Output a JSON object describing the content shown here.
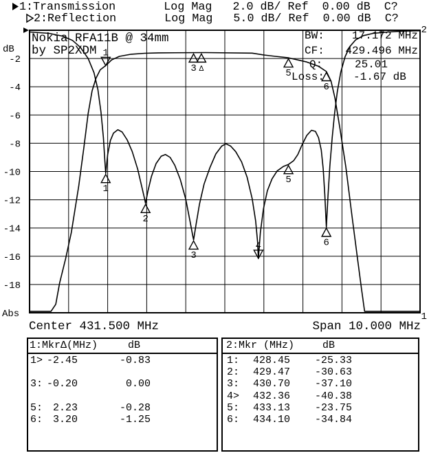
{
  "header": {
    "line1_text": "1:Transmission       Log Mag   2.0 dB/ Ref  0.00 dB  C?",
    "line2_text": "2:Reflection       Log Mag   5.0 dB/ Ref  0.00 dB  C?"
  },
  "annotation": {
    "line1": "Nokia RFA11B @ 34mm",
    "line2": "by SP2XDM"
  },
  "measurements": {
    "bw_label": "BW:",
    "bw_value": "17.172 MHz",
    "cf_label": "CF:",
    "cf_value": "429.496 MHz",
    "q_label": "Q:",
    "q_value": "25.01",
    "loss_label": "Loss:",
    "loss_value": "-1.67 dB"
  },
  "axis": {
    "y_title": "dB",
    "y_bottom": "Abs",
    "center_label": "Center 431.500 MHz",
    "span_label": "Span 10.000 MHz",
    "trace1_end": "1",
    "trace2_end": "2"
  },
  "chart_data": {
    "type": "line",
    "title": "Nokia RFA11B @ 34mm by SP2XDM",
    "x_axis": {
      "min_mhz": 426.5,
      "max_mhz": 436.5,
      "center_mhz": 431.5,
      "span_mhz": 10.0,
      "divisions": 10
    },
    "y_axis": {
      "ref_db": 0.0,
      "divisions": 10,
      "ticks": [
        "-2",
        "-4",
        "-6",
        "-8",
        "-10",
        "-12",
        "-14",
        "-16",
        "-18"
      ],
      "trace1_db_per_div": 2.0,
      "trace2_db_per_div": 5.0
    },
    "grid": true,
    "series": [
      {
        "name": "Transmission",
        "trace": 1,
        "db_per_div": 2,
        "points": [
          [
            426.5,
            -19.9
          ],
          [
            427.05,
            -19.9
          ],
          [
            427.17,
            -19.4
          ],
          [
            427.27,
            -17.9
          ],
          [
            427.42,
            -16.2
          ],
          [
            427.57,
            -14.3
          ],
          [
            427.76,
            -11.0
          ],
          [
            427.89,
            -8.3
          ],
          [
            428.0,
            -5.9
          ],
          [
            428.1,
            -4.3
          ],
          [
            428.2,
            -3.4
          ],
          [
            428.31,
            -2.8
          ],
          [
            428.45,
            -2.5
          ],
          [
            428.6,
            -2.1
          ],
          [
            428.8,
            -1.85
          ],
          [
            429.1,
            -1.7
          ],
          [
            429.45,
            -1.63
          ],
          [
            429.8,
            -1.6
          ],
          [
            431.0,
            -1.58
          ],
          [
            432.2,
            -1.62
          ],
          [
            432.5,
            -1.75
          ],
          [
            432.8,
            -1.85
          ],
          [
            433.13,
            -1.95
          ],
          [
            433.6,
            -2.25
          ],
          [
            433.9,
            -2.55
          ],
          [
            434.1,
            -2.92
          ],
          [
            434.22,
            -3.6
          ],
          [
            434.32,
            -4.8
          ],
          [
            434.45,
            -7.0
          ],
          [
            434.6,
            -9.7
          ],
          [
            434.75,
            -13.0
          ],
          [
            434.9,
            -16.2
          ],
          [
            435.0,
            -18.3
          ],
          [
            435.08,
            -19.9
          ],
          [
            436.5,
            -19.9
          ]
        ]
      },
      {
        "name": "Reflection",
        "trace": 2,
        "db_per_div": 5,
        "points": [
          [
            426.5,
            -0.3
          ],
          [
            427.0,
            -0.55
          ],
          [
            427.35,
            -1.05
          ],
          [
            427.6,
            -1.8
          ],
          [
            427.8,
            -3.0
          ],
          [
            428.0,
            -5.0
          ],
          [
            428.15,
            -7.5
          ],
          [
            428.25,
            -10.5
          ],
          [
            428.33,
            -14.5
          ],
          [
            428.39,
            -19.0
          ],
          [
            428.43,
            -23.3
          ],
          [
            428.45,
            -25.33
          ],
          [
            428.5,
            -22.0
          ],
          [
            428.57,
            -19.5
          ],
          [
            428.65,
            -18.2
          ],
          [
            428.76,
            -17.6
          ],
          [
            428.87,
            -18.0
          ],
          [
            429.0,
            -19.4
          ],
          [
            429.13,
            -21.5
          ],
          [
            429.27,
            -24.6
          ],
          [
            429.39,
            -28.2
          ],
          [
            429.45,
            -30.0
          ],
          [
            429.47,
            -30.63
          ],
          [
            429.53,
            -28.5
          ],
          [
            429.62,
            -25.9
          ],
          [
            429.74,
            -23.6
          ],
          [
            429.87,
            -22.3
          ],
          [
            429.98,
            -22.0
          ],
          [
            430.1,
            -22.5
          ],
          [
            430.22,
            -23.9
          ],
          [
            430.36,
            -26.4
          ],
          [
            430.5,
            -29.9
          ],
          [
            430.61,
            -33.8
          ],
          [
            430.68,
            -36.4
          ],
          [
            430.7,
            -37.1
          ],
          [
            430.76,
            -34.5
          ],
          [
            430.85,
            -30.8
          ],
          [
            430.97,
            -27.2
          ],
          [
            431.12,
            -24.3
          ],
          [
            431.27,
            -21.9
          ],
          [
            431.42,
            -20.5
          ],
          [
            431.53,
            -20.1
          ],
          [
            431.65,
            -20.5
          ],
          [
            431.78,
            -21.5
          ],
          [
            431.93,
            -23.3
          ],
          [
            432.07,
            -26.0
          ],
          [
            432.2,
            -29.8
          ],
          [
            432.29,
            -33.8
          ],
          [
            432.34,
            -37.5
          ],
          [
            432.36,
            -40.38
          ],
          [
            432.41,
            -35.8
          ],
          [
            432.49,
            -31.6
          ],
          [
            432.59,
            -28.4
          ],
          [
            432.71,
            -26.3
          ],
          [
            432.84,
            -24.9
          ],
          [
            433.0,
            -24.1
          ],
          [
            433.13,
            -23.75
          ],
          [
            433.26,
            -23.1
          ],
          [
            433.37,
            -22.0
          ],
          [
            433.47,
            -20.4
          ],
          [
            433.6,
            -18.6
          ],
          [
            433.72,
            -17.7
          ],
          [
            433.82,
            -17.9
          ],
          [
            433.9,
            -19.0
          ],
          [
            433.97,
            -21.2
          ],
          [
            434.02,
            -24.5
          ],
          [
            434.06,
            -29.0
          ],
          [
            434.1,
            -34.84
          ],
          [
            434.14,
            -29.5
          ],
          [
            434.19,
            -24.0
          ],
          [
            434.25,
            -19.0
          ],
          [
            434.31,
            -14.8
          ],
          [
            434.38,
            -10.9
          ],
          [
            434.47,
            -7.4
          ],
          [
            434.58,
            -4.7
          ],
          [
            434.7,
            -2.9
          ],
          [
            434.85,
            -1.7
          ],
          [
            435.05,
            -0.95
          ],
          [
            435.3,
            -0.55
          ],
          [
            435.7,
            -0.3
          ],
          [
            436.1,
            -0.15
          ],
          [
            436.5,
            -0.08
          ]
        ]
      }
    ],
    "markers": {
      "trace1": [
        {
          "label": "1",
          "mhz": 428.45,
          "db": -2.5,
          "active": true
        },
        {
          "label": "3",
          "mhz": 430.7,
          "db": -1.6
        },
        {
          "label": "Δ",
          "mhz": 430.9,
          "db": -1.6,
          "small": true
        },
        {
          "label": "5",
          "mhz": 433.13,
          "db": -1.95
        },
        {
          "label": "6",
          "mhz": 434.1,
          "db": -2.92
        }
      ],
      "trace2": [
        {
          "label": "1",
          "mhz": 428.45,
          "db": -25.33
        },
        {
          "label": "2",
          "mhz": 429.47,
          "db": -30.63
        },
        {
          "label": "3",
          "mhz": 430.7,
          "db": -37.1
        },
        {
          "label": "4",
          "mhz": 432.36,
          "db": -40.38,
          "active": true
        },
        {
          "label": "5",
          "mhz": 433.13,
          "db": -23.75
        },
        {
          "label": "6",
          "mhz": 434.1,
          "db": -34.84
        }
      ]
    }
  },
  "tables": {
    "left": {
      "title": "1:MkrΔ(MHz)",
      "unit": "dB",
      "rows": [
        [
          "1>",
          "-2.45",
          "-0.83"
        ],
        [
          "",
          "",
          ""
        ],
        [
          "3:",
          "-0.20",
          "0.00"
        ],
        [
          "",
          "",
          ""
        ],
        [
          "5:",
          "2.23",
          "-0.28"
        ],
        [
          "6:",
          "3.20",
          "-1.25"
        ]
      ]
    },
    "right": {
      "title": "2:Mkr (MHz)",
      "unit": "dB",
      "rows": [
        [
          "1:",
          "428.45",
          "-25.33"
        ],
        [
          "2:",
          "429.47",
          "-30.63"
        ],
        [
          "3:",
          "430.70",
          "-37.10"
        ],
        [
          "4>",
          "432.36",
          "-40.38"
        ],
        [
          "5:",
          "433.13",
          "-23.75"
        ],
        [
          "6:",
          "434.10",
          "-34.84"
        ]
      ]
    }
  }
}
